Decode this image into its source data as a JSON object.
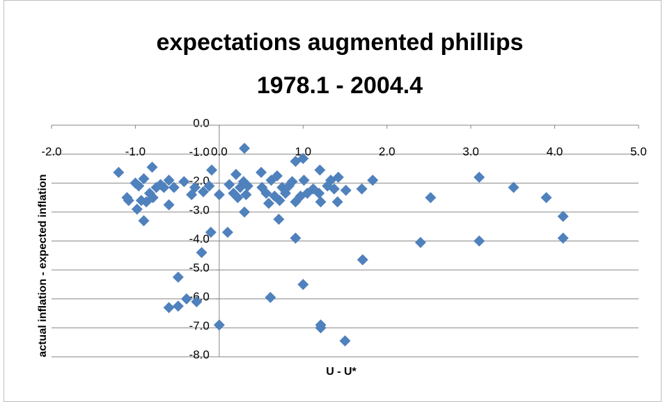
{
  "chart_data": {
    "type": "scatter",
    "title": "expectations augmented phillips",
    "subtitle": "1978.1 - 2004.4",
    "x_label": "U - U*",
    "y_label": "actual inflation - expected inflation",
    "color": "#4f81bd",
    "grid": true,
    "xlim": [
      -2,
      5
    ],
    "ylim": [
      -8,
      0
    ],
    "xticks": [
      {
        "value": -2,
        "label": "-2.0"
      },
      {
        "value": -1,
        "label": "-1.0"
      },
      {
        "value": 0,
        "label": "0.0"
      },
      {
        "value": 1,
        "label": "1.0"
      },
      {
        "value": 2,
        "label": "2.0"
      },
      {
        "value": 3,
        "label": "3.0"
      },
      {
        "value": 4,
        "label": "4.0"
      },
      {
        "value": 5,
        "label": "5.0"
      }
    ],
    "yticks": [
      {
        "value": 0,
        "label": "0.0"
      },
      {
        "value": -1,
        "label": "-1.0"
      },
      {
        "value": -2,
        "label": "-2.0"
      },
      {
        "value": -3,
        "label": "-3.0"
      },
      {
        "value": -4,
        "label": "-4.0"
      },
      {
        "value": -5,
        "label": "-5.0"
      },
      {
        "value": -6,
        "label": "-6.0"
      },
      {
        "value": -7,
        "label": "-7.0"
      },
      {
        "value": -8,
        "label": "-8.0"
      }
    ],
    "x": [
      -1.2,
      -1.1,
      -1.08,
      -1.0,
      -0.98,
      -0.96,
      -0.93,
      -0.9,
      -0.9,
      -0.87,
      -0.83,
      -0.8,
      -0.79,
      -0.75,
      -0.7,
      -0.66,
      -0.6,
      -0.6,
      -0.6,
      -0.54,
      -0.49,
      -0.49,
      -0.42,
      -0.39,
      -0.33,
      -0.29,
      -0.27,
      -0.21,
      -0.19,
      -0.12,
      -0.1,
      -0.09,
      0.0,
      0.0,
      0.1,
      0.12,
      0.17,
      0.2,
      0.22,
      0.25,
      0.29,
      0.3,
      0.3,
      0.32,
      0.34,
      0.5,
      0.51,
      0.56,
      0.59,
      0.61,
      0.62,
      0.66,
      0.69,
      0.71,
      0.72,
      0.75,
      0.79,
      0.83,
      0.87,
      0.91,
      0.91,
      0.91,
      0.97,
      1.01,
      1.0,
      1.0,
      1.05,
      1.12,
      1.19,
      1.2,
      1.21,
      1.21,
      1.21,
      1.29,
      1.33,
      1.37,
      1.41,
      1.42,
      1.5,
      1.51,
      1.7,
      1.71,
      1.83,
      2.4,
      2.52,
      3.1,
      3.1,
      3.51,
      3.9,
      4.1,
      4.1
    ],
    "values": [
      -1.63,
      -2.5,
      -2.6,
      -2.0,
      -2.9,
      -2.1,
      -2.6,
      -1.85,
      -3.3,
      -2.65,
      -2.35,
      -1.45,
      -2.5,
      -2.15,
      -2.05,
      -2.15,
      -1.9,
      -2.75,
      -6.3,
      -2.15,
      -5.25,
      -6.25,
      -1.95,
      -6.0,
      -2.4,
      -2.15,
      -6.1,
      -4.4,
      -2.3,
      -2.1,
      -3.7,
      -1.55,
      -2.4,
      -6.9,
      -3.7,
      -2.05,
      -2.35,
      -1.7,
      -2.5,
      -2.15,
      -1.95,
      -0.8,
      -3.0,
      -2.4,
      -2.1,
      -1.63,
      -2.15,
      -2.35,
      -2.7,
      -5.95,
      -1.9,
      -2.45,
      -1.75,
      -3.25,
      -2.6,
      -2.15,
      -2.35,
      -2.1,
      -1.95,
      -2.65,
      -3.9,
      -1.25,
      -2.45,
      -1.9,
      -1.15,
      -5.5,
      -2.35,
      -2.2,
      -2.35,
      -1.55,
      -2.65,
      -6.9,
      -7.0,
      -2.1,
      -1.9,
      -2.2,
      -2.65,
      -1.8,
      -7.45,
      -2.25,
      -2.2,
      -4.65,
      -1.9,
      -4.05,
      -2.5,
      -1.8,
      -4.0,
      -2.15,
      -2.5,
      -3.15,
      -3.9
    ]
  }
}
